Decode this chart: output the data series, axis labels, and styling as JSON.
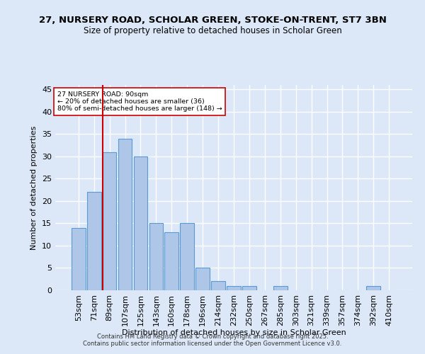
{
  "title": "27, NURSERY ROAD, SCHOLAR GREEN, STOKE-ON-TRENT, ST7 3BN",
  "subtitle": "Size of property relative to detached houses in Scholar Green",
  "xlabel": "Distribution of detached houses by size in Scholar Green",
  "ylabel": "Number of detached properties",
  "categories": [
    "53sqm",
    "71sqm",
    "89sqm",
    "107sqm",
    "125sqm",
    "143sqm",
    "160sqm",
    "178sqm",
    "196sqm",
    "214sqm",
    "232sqm",
    "250sqm",
    "267sqm",
    "285sqm",
    "303sqm",
    "321sqm",
    "339sqm",
    "357sqm",
    "374sqm",
    "392sqm",
    "410sqm"
  ],
  "values": [
    14,
    22,
    31,
    34,
    30,
    15,
    13,
    15,
    5,
    2,
    1,
    1,
    0,
    1,
    0,
    0,
    0,
    0,
    0,
    1,
    0
  ],
  "bar_color": "#aec6e8",
  "bar_edge_color": "#5b9bd5",
  "background_color": "#dce8f8",
  "grid_color": "#ffffff",
  "vline_x_index": 2,
  "vline_color": "#cc0000",
  "annotation_text": "27 NURSERY ROAD: 90sqm\n← 20% of detached houses are smaller (36)\n80% of semi-detached houses are larger (148) →",
  "annotation_box_color": "#ffffff",
  "annotation_box_edge_color": "#cc0000",
  "footer_text": "Contains HM Land Registry data © Crown copyright and database right 2025.\nContains public sector information licensed under the Open Government Licence v3.0.",
  "ylim": [
    0,
    46
  ],
  "yticks": [
    0,
    5,
    10,
    15,
    20,
    25,
    30,
    35,
    40,
    45
  ]
}
